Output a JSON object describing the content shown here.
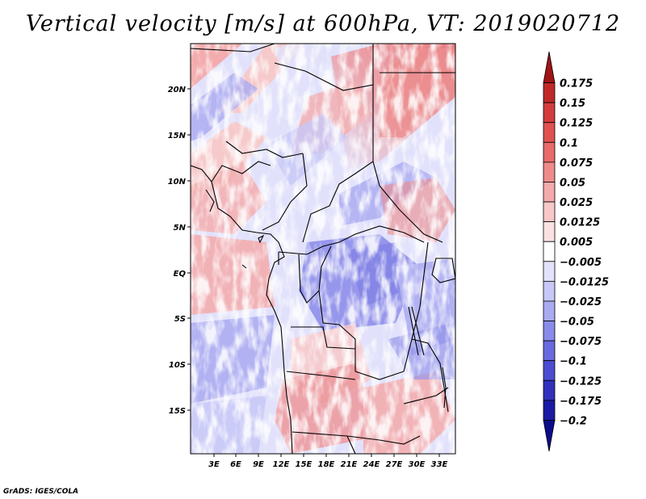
{
  "title": "Vertical velocity [m/s] at 600hPa, VT: 2019020712",
  "credit": "GrADS: IGES/COLA",
  "map": {
    "variable": "Vertical velocity",
    "units": "m/s",
    "level": "600hPa",
    "valid_time": "2019020712",
    "lat_labels": [
      "20N",
      "15N",
      "10N",
      "5N",
      "EQ",
      "5S",
      "10S",
      "15S"
    ],
    "lon_labels": [
      "3E",
      "6E",
      "9E",
      "12E",
      "15E",
      "18E",
      "21E",
      "24E",
      "27E",
      "30E",
      "33E"
    ]
  },
  "colorbar": {
    "levels": [
      "0.175",
      "0.15",
      "0.125",
      "0.1",
      "0.075",
      "0.05",
      "0.025",
      "0.0125",
      "0.005",
      "−0.005",
      "−0.0125",
      "−0.025",
      "−0.05",
      "−0.075",
      "−0.1",
      "−0.125",
      "−0.175",
      "−0.2"
    ],
    "colors": [
      "#a01414",
      "#c02828",
      "#d33c3c",
      "#e05050",
      "#e86a6a",
      "#ee8a8a",
      "#f4aaaa",
      "#f8c8c8",
      "#fbe2e2",
      "#ffffff",
      "#e2e2fb",
      "#c8c8f8",
      "#aaaaf2",
      "#8a8aea",
      "#6a6ae0",
      "#4c4cd2",
      "#3030bc",
      "#1a1aa4",
      "#0c0c8c"
    ]
  }
}
